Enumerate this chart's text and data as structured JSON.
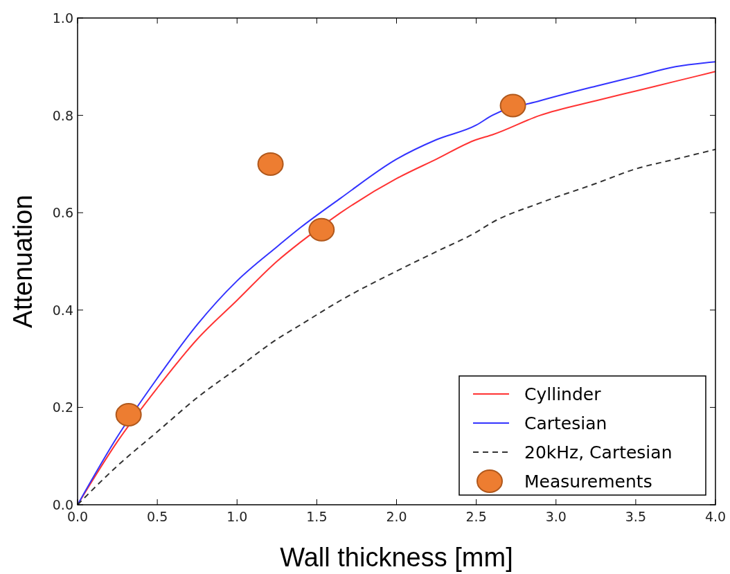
{
  "chart_data": {
    "type": "line",
    "xlabel": "Wall thickness [mm]",
    "ylabel": "Attenuation",
    "xlim": [
      0,
      4
    ],
    "ylim": [
      0,
      1
    ],
    "xticks": [
      {
        "value": 0,
        "label": "0.0"
      },
      0.5,
      {
        "value": 1,
        "label": "1.0"
      },
      1.5,
      {
        "value": 2,
        "label": "2.0"
      },
      2.5,
      {
        "value": 3,
        "label": "3.0"
      },
      3.5,
      {
        "value": 4,
        "label": "4.0"
      }
    ],
    "yticks": [
      {
        "value": 0,
        "label": "0.0"
      },
      0.2,
      0.4,
      0.6,
      0.8,
      {
        "value": 1,
        "label": "1.0"
      }
    ],
    "legend": "bottom right",
    "x": [
      0,
      0.25,
      0.5,
      0.75,
      1,
      1.25,
      1.4,
      1.65,
      2,
      2.25,
      2.5,
      2.6,
      2.9,
      3.25,
      3.5,
      3.75,
      4
    ],
    "series": [
      {
        "name": "Cyllinder",
        "color": "#ff3333",
        "line_style": "solid",
        "values": [
          0,
          0.13,
          0.24,
          0.34,
          0.42,
          0.5,
          0.54,
          0.6,
          0.67,
          0.71,
          0.75,
          0.76,
          0.8,
          0.83,
          0.85,
          0.87,
          0.89
        ]
      },
      {
        "name": "Cartesian",
        "color": "#3333ff",
        "line_style": "solid",
        "values": [
          0,
          0.14,
          0.26,
          0.37,
          0.46,
          0.53,
          0.57,
          0.63,
          0.71,
          0.75,
          0.78,
          0.8,
          0.83,
          0.86,
          0.88,
          0.9,
          0.91
        ]
      },
      {
        "name": "20kHz, Cartesian",
        "color": "#333333",
        "line_style": "dashed",
        "values": [
          0,
          0.08,
          0.15,
          0.22,
          0.28,
          0.34,
          0.37,
          0.42,
          0.48,
          0.52,
          0.56,
          0.58,
          0.62,
          0.66,
          0.69,
          0.71,
          0.73
        ]
      },
      {
        "name": "Measurements",
        "type": "scatter",
        "color": "#ed7d31",
        "marker": "circle",
        "x": [
          0.32,
          1.21,
          1.53,
          2.73
        ],
        "values": [
          0.185,
          0.7,
          0.565,
          0.82
        ]
      }
    ]
  }
}
